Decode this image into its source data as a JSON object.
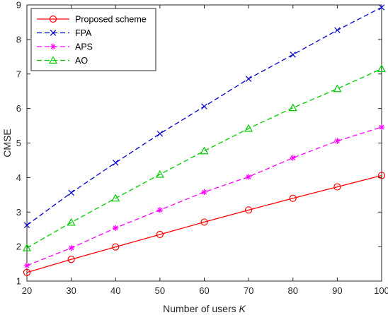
{
  "chart_data": {
    "type": "line",
    "title": "",
    "xlabel": "Number of users",
    "xlabel_symbol": "K",
    "ylabel": "CMSE",
    "x": [
      20,
      30,
      40,
      50,
      60,
      70,
      80,
      90,
      100
    ],
    "xlim": [
      20,
      100
    ],
    "ylim": [
      1,
      9
    ],
    "xticks": [
      20,
      30,
      40,
      50,
      60,
      70,
      80,
      90,
      100
    ],
    "yticks": [
      1,
      2,
      3,
      4,
      5,
      6,
      7,
      8,
      9
    ],
    "grid": false,
    "legend_position": "top-left",
    "series": [
      {
        "name": "Proposed scheme",
        "color": "#ff0000",
        "dash": "solid",
        "marker": "circle",
        "values": [
          1.25,
          1.63,
          1.99,
          2.35,
          2.71,
          3.06,
          3.4,
          3.73,
          4.06
        ]
      },
      {
        "name": "FPA",
        "color": "#0000cd",
        "dash": "dashed",
        "marker": "x",
        "values": [
          2.62,
          3.56,
          4.43,
          5.27,
          6.06,
          6.86,
          7.56,
          8.27,
          8.93
        ]
      },
      {
        "name": "APS",
        "color": "#ff00ff",
        "dash": "dashed",
        "marker": "asterisk",
        "values": [
          1.45,
          1.96,
          2.54,
          3.06,
          3.58,
          4.02,
          4.57,
          5.06,
          5.46
        ]
      },
      {
        "name": "AO",
        "color": "#00cc00",
        "dash": "dashed",
        "marker": "triangle",
        "values": [
          1.96,
          2.7,
          3.4,
          4.09,
          4.77,
          5.42,
          6.02,
          6.57,
          7.15
        ]
      }
    ]
  }
}
